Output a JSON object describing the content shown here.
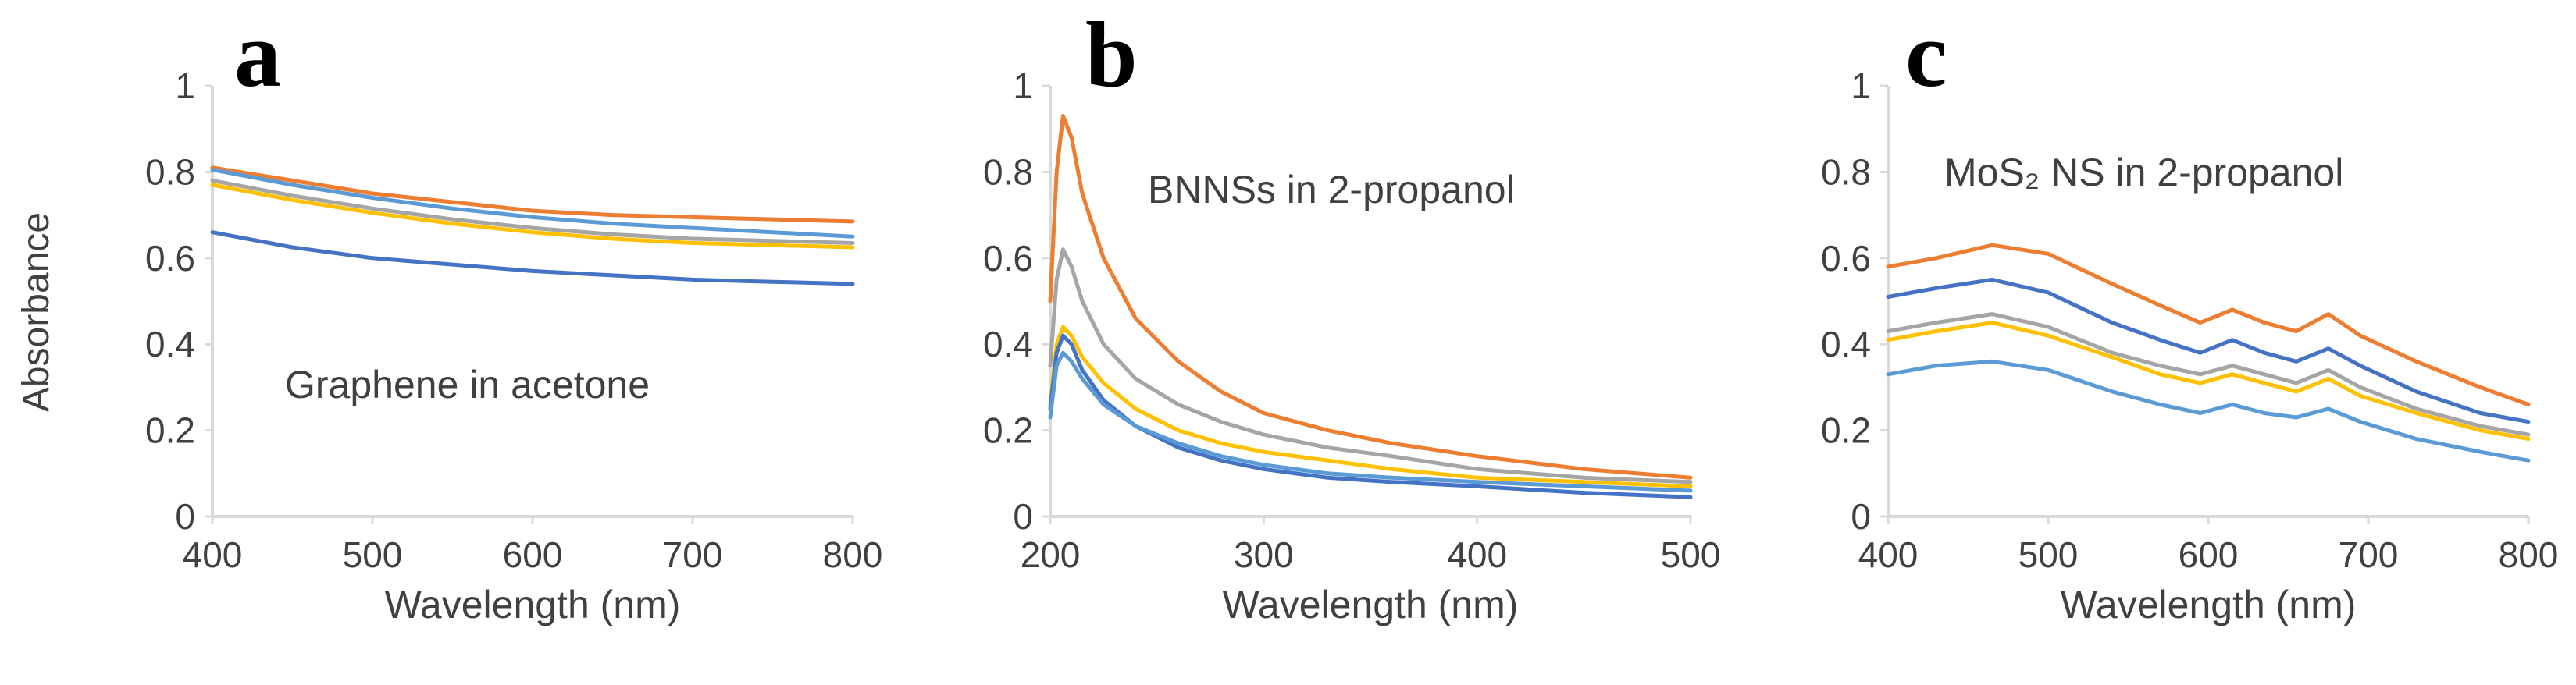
{
  "figure": {
    "ylabel": "Absorbance"
  },
  "chart_data": [
    {
      "type": "line",
      "panel_label": "a",
      "annotation": "Graphene in acetone",
      "xlabel": "Wavelength (nm)",
      "ylabel": "Absorbance",
      "xlim": [
        400,
        800
      ],
      "ylim": [
        0,
        1
      ],
      "x_ticks": [
        "400",
        "500",
        "600",
        "700",
        "800"
      ],
      "y_ticks": [
        "0",
        "0.2",
        "0.4",
        "0.6",
        "0.8",
        "1"
      ],
      "x": [
        400,
        450,
        500,
        550,
        600,
        650,
        700,
        750,
        800
      ],
      "series": [
        {
          "name": "orange",
          "color": "#ED7D31",
          "values": [
            0.81,
            0.78,
            0.75,
            0.73,
            0.71,
            0.7,
            0.695,
            0.69,
            0.685
          ]
        },
        {
          "name": "light blue",
          "color": "#5B9BD5",
          "values": [
            0.805,
            0.77,
            0.74,
            0.715,
            0.695,
            0.68,
            0.67,
            0.66,
            0.65
          ]
        },
        {
          "name": "gray",
          "color": "#A5A5A5",
          "values": [
            0.78,
            0.745,
            0.715,
            0.69,
            0.67,
            0.655,
            0.645,
            0.64,
            0.635
          ]
        },
        {
          "name": "yellow",
          "color": "#FFC000",
          "values": [
            0.77,
            0.735,
            0.705,
            0.68,
            0.66,
            0.645,
            0.635,
            0.63,
            0.625
          ]
        },
        {
          "name": "blue",
          "color": "#4472C4",
          "values": [
            0.66,
            0.625,
            0.6,
            0.585,
            0.57,
            0.56,
            0.55,
            0.545,
            0.54
          ]
        }
      ]
    },
    {
      "type": "line",
      "panel_label": "b",
      "annotation": "BNNSs in 2-propanol",
      "xlabel": "Wavelength (nm)",
      "ylabel": "Absorbance",
      "xlim": [
        200,
        500
      ],
      "ylim": [
        0,
        1
      ],
      "x_ticks": [
        "200",
        "300",
        "400",
        "500"
      ],
      "y_ticks": [
        "0",
        "0.2",
        "0.4",
        "0.6",
        "0.8",
        "1"
      ],
      "x": [
        200,
        203,
        206,
        210,
        215,
        225,
        240,
        260,
        280,
        300,
        330,
        360,
        400,
        450,
        500
      ],
      "series": [
        {
          "name": "orange",
          "color": "#ED7D31",
          "values": [
            0.5,
            0.8,
            0.93,
            0.88,
            0.75,
            0.6,
            0.46,
            0.36,
            0.29,
            0.24,
            0.2,
            0.17,
            0.14,
            0.11,
            0.09
          ]
        },
        {
          "name": "gray",
          "color": "#A5A5A5",
          "values": [
            0.35,
            0.55,
            0.62,
            0.58,
            0.5,
            0.4,
            0.32,
            0.26,
            0.22,
            0.19,
            0.16,
            0.14,
            0.11,
            0.09,
            0.08
          ]
        },
        {
          "name": "yellow",
          "color": "#FFC000",
          "values": [
            0.26,
            0.4,
            0.44,
            0.42,
            0.37,
            0.31,
            0.25,
            0.2,
            0.17,
            0.15,
            0.13,
            0.11,
            0.09,
            0.08,
            0.07
          ]
        },
        {
          "name": "blue",
          "color": "#4472C4",
          "values": [
            0.25,
            0.38,
            0.42,
            0.4,
            0.34,
            0.27,
            0.21,
            0.16,
            0.13,
            0.11,
            0.09,
            0.08,
            0.07,
            0.055,
            0.045
          ]
        },
        {
          "name": "light blue",
          "color": "#5B9BD5",
          "values": [
            0.23,
            0.35,
            0.38,
            0.36,
            0.32,
            0.26,
            0.21,
            0.17,
            0.14,
            0.12,
            0.1,
            0.09,
            0.08,
            0.07,
            0.06
          ]
        }
      ]
    },
    {
      "type": "line",
      "panel_label": "c",
      "annotation": "MoS₂ NS in 2-propanol",
      "xlabel": "Wavelength (nm)",
      "ylabel": "Absorbance",
      "xlim": [
        400,
        800
      ],
      "ylim": [
        0,
        1
      ],
      "x_ticks": [
        "400",
        "500",
        "600",
        "700",
        "800"
      ],
      "y_ticks": [
        "0",
        "0.2",
        "0.4",
        "0.6",
        "0.8",
        "1"
      ],
      "x": [
        400,
        430,
        465,
        500,
        540,
        570,
        595,
        615,
        635,
        655,
        675,
        695,
        730,
        770,
        800
      ],
      "series": [
        {
          "name": "orange",
          "color": "#ED7D31",
          "values": [
            0.58,
            0.6,
            0.63,
            0.61,
            0.54,
            0.49,
            0.45,
            0.48,
            0.45,
            0.43,
            0.47,
            0.42,
            0.36,
            0.3,
            0.26
          ]
        },
        {
          "name": "blue",
          "color": "#4472C4",
          "values": [
            0.51,
            0.53,
            0.55,
            0.52,
            0.45,
            0.41,
            0.38,
            0.41,
            0.38,
            0.36,
            0.39,
            0.35,
            0.29,
            0.24,
            0.22
          ]
        },
        {
          "name": "gray",
          "color": "#A5A5A5",
          "values": [
            0.43,
            0.45,
            0.47,
            0.44,
            0.38,
            0.35,
            0.33,
            0.35,
            0.33,
            0.31,
            0.34,
            0.3,
            0.25,
            0.21,
            0.19
          ]
        },
        {
          "name": "yellow",
          "color": "#FFC000",
          "values": [
            0.41,
            0.43,
            0.45,
            0.42,
            0.37,
            0.33,
            0.31,
            0.33,
            0.31,
            0.29,
            0.32,
            0.28,
            0.24,
            0.2,
            0.18
          ]
        },
        {
          "name": "light blue",
          "color": "#5B9BD5",
          "values": [
            0.33,
            0.35,
            0.36,
            0.34,
            0.29,
            0.26,
            0.24,
            0.26,
            0.24,
            0.23,
            0.25,
            0.22,
            0.18,
            0.15,
            0.13
          ]
        }
      ]
    }
  ]
}
